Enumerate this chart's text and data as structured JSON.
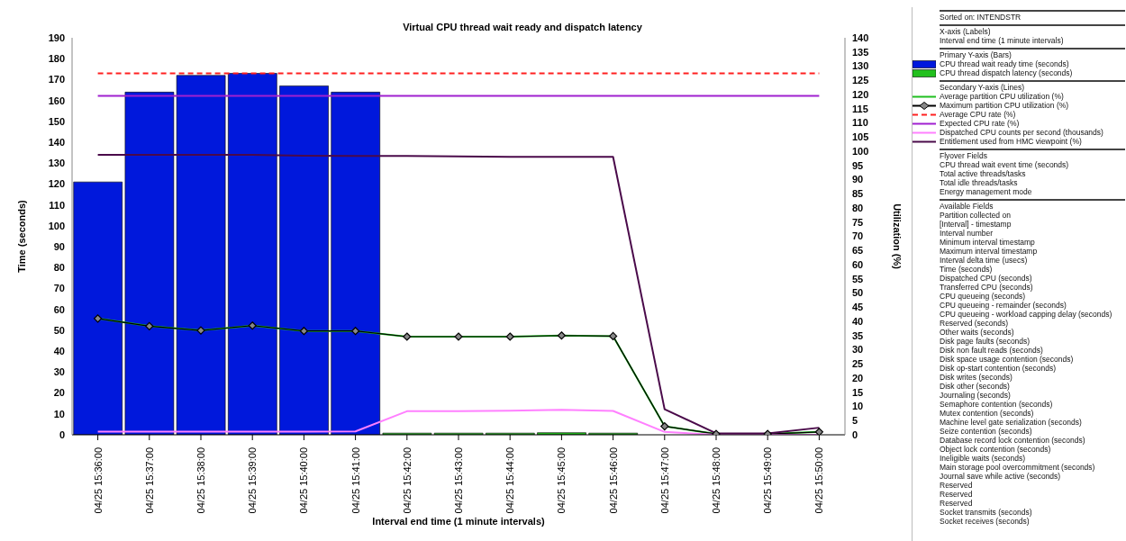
{
  "chart_data": {
    "type": "bar",
    "title": "Virtual CPU thread wait ready and dispatch latency",
    "xlabel": "Interval end time (1 minute intervals)",
    "ylabel": "Time (seconds)",
    "y2label": "Utilization (%)",
    "categories": [
      "04/25 15:36:00",
      "04/25 15:37:00",
      "04/25 15:38:00",
      "04/25 15:39:00",
      "04/25 15:40:00",
      "04/25 15:41:00",
      "04/25 15:42:00",
      "04/25 15:43:00",
      "04/25 15:44:00",
      "04/25 15:45:00",
      "04/25 15:46:00",
      "04/25 15:47:00",
      "04/25 15:48:00",
      "04/25 15:49:00",
      "04/25 15:50:00"
    ],
    "stacked": true,
    "series": [
      {
        "name": "CPU thread wait ready time (seconds)",
        "color": "#0018dc",
        "values": [
          121,
          164,
          172,
          173,
          167,
          164,
          null,
          null,
          null,
          null,
          null,
          null,
          null,
          null,
          null
        ]
      },
      {
        "name": "CPU thread dispatch latency (seconds)",
        "color": "#22c01e",
        "values": [
          null,
          null,
          null,
          null,
          null,
          null,
          0.8,
          0.8,
          0.8,
          1,
          0.8,
          null,
          null,
          null,
          null
        ]
      },
      {
        "name": "Average partition CPU utilization (%)",
        "type": "line",
        "axis": "y2",
        "color": "#1fbf1f",
        "values": [
          41,
          38.3,
          36.8,
          38.5,
          36.6,
          36.6,
          34.6,
          34.6,
          34.6,
          35,
          34.8,
          3,
          0.3,
          0.3,
          1
        ]
      },
      {
        "name": "Maximum partition CPU utilization (%)",
        "type": "line",
        "axis": "y2",
        "color": "#000000",
        "marker": "diamond",
        "values": [
          41,
          38.3,
          36.8,
          38.5,
          36.6,
          36.6,
          34.6,
          34.6,
          34.6,
          35,
          34.8,
          3,
          0.3,
          0.3,
          1
        ]
      },
      {
        "name": "Average CPU rate (%)",
        "type": "line",
        "axis": "y2",
        "color": "#ff2020",
        "line_style": "dashed",
        "values": [
          127.5,
          127.5,
          127.5,
          127.5,
          127.5,
          127.5,
          127.5,
          127.5,
          127.5,
          127.5,
          127.5,
          127.5,
          127.5,
          127.5,
          127.5
        ]
      },
      {
        "name": "Expected CPU rate (%)",
        "type": "line",
        "axis": "y2",
        "color": "#a020d0",
        "values": [
          119.5,
          119.5,
          119.5,
          119.5,
          119.5,
          119.5,
          119.5,
          119.5,
          119.5,
          119.5,
          119.5,
          119.5,
          119.5,
          119.5,
          119.5
        ]
      },
      {
        "name": "Dispatched CPU counts per second (thousands)",
        "type": "line",
        "axis": "y2",
        "color": "#ff80ff",
        "values": [
          1.1,
          1.1,
          1.1,
          1.1,
          1.1,
          1.2,
          8.3,
          8.3,
          8.5,
          8.8,
          8.4,
          1,
          0,
          0,
          0
        ]
      },
      {
        "name": "Entitlement used from HMC viewpoint (%)",
        "type": "line",
        "axis": "y2",
        "color": "#4a0a4a",
        "values": [
          98.7,
          98.7,
          98.7,
          98.7,
          98.4,
          98.3,
          98.3,
          98.2,
          98,
          98,
          98,
          9,
          0.5,
          0.5,
          2.5
        ]
      }
    ],
    "ylim": [
      0,
      190
    ],
    "yticks": [
      0,
      10,
      20,
      30,
      40,
      50,
      60,
      70,
      80,
      90,
      100,
      110,
      120,
      130,
      140,
      150,
      160,
      170,
      180,
      190
    ],
    "y2lim": [
      0,
      140
    ],
    "y2ticks": [
      0,
      5,
      10,
      15,
      20,
      25,
      30,
      35,
      40,
      45,
      50,
      55,
      60,
      65,
      70,
      75,
      80,
      85,
      90,
      95,
      100,
      105,
      110,
      115,
      120,
      125,
      130,
      135,
      140
    ],
    "legend": "right",
    "annotations": [
      "Sorted on: INTENDSTR",
      "X-axis (Labels)",
      "Interval end time (1 minute intervals)",
      "Primary Y-axis (Bars)",
      "Secondary Y-axis (Lines)",
      "Flyover Fields",
      "CPU thread wait event time (seconds)",
      "Total active threads/tasks",
      "Total idle threads/tasks",
      "Energy management mode",
      "Available Fields",
      "Partition collected on",
      "[Interval] - timestamp",
      "Interval number",
      "Minimum interval timestamp",
      "Maximum interval timestamp",
      "Interval delta time (usecs)",
      "Time (seconds)",
      "Dispatched CPU (seconds)",
      "Transferred CPU (seconds)",
      "CPU queueing (seconds)",
      "CPU queueing - remainder (seconds)",
      "CPU queueing - workload capping delay (seconds)",
      "Reserved (seconds)",
      "Other waits (seconds)",
      "Disk page faults (seconds)",
      "Disk non fault reads (seconds)",
      "Disk space usage contention (seconds)",
      "Disk op-start contention (seconds)",
      "Disk writes (seconds)",
      "Disk other (seconds)",
      "Journaling (seconds)",
      "Semaphore contention (seconds)",
      "Mutex contention (seconds)",
      "Machine level gate serialization (seconds)",
      "Seize contention (seconds)",
      "Database record lock contention (seconds)",
      "Object lock contention (seconds)",
      "Ineligible waits (seconds)",
      "Main storage pool overcommitment (seconds)",
      "Journal save while active (seconds)",
      "Reserved",
      "Reserved",
      "Reserved",
      "Socket transmits (seconds)",
      "Socket receives (seconds)"
    ]
  }
}
